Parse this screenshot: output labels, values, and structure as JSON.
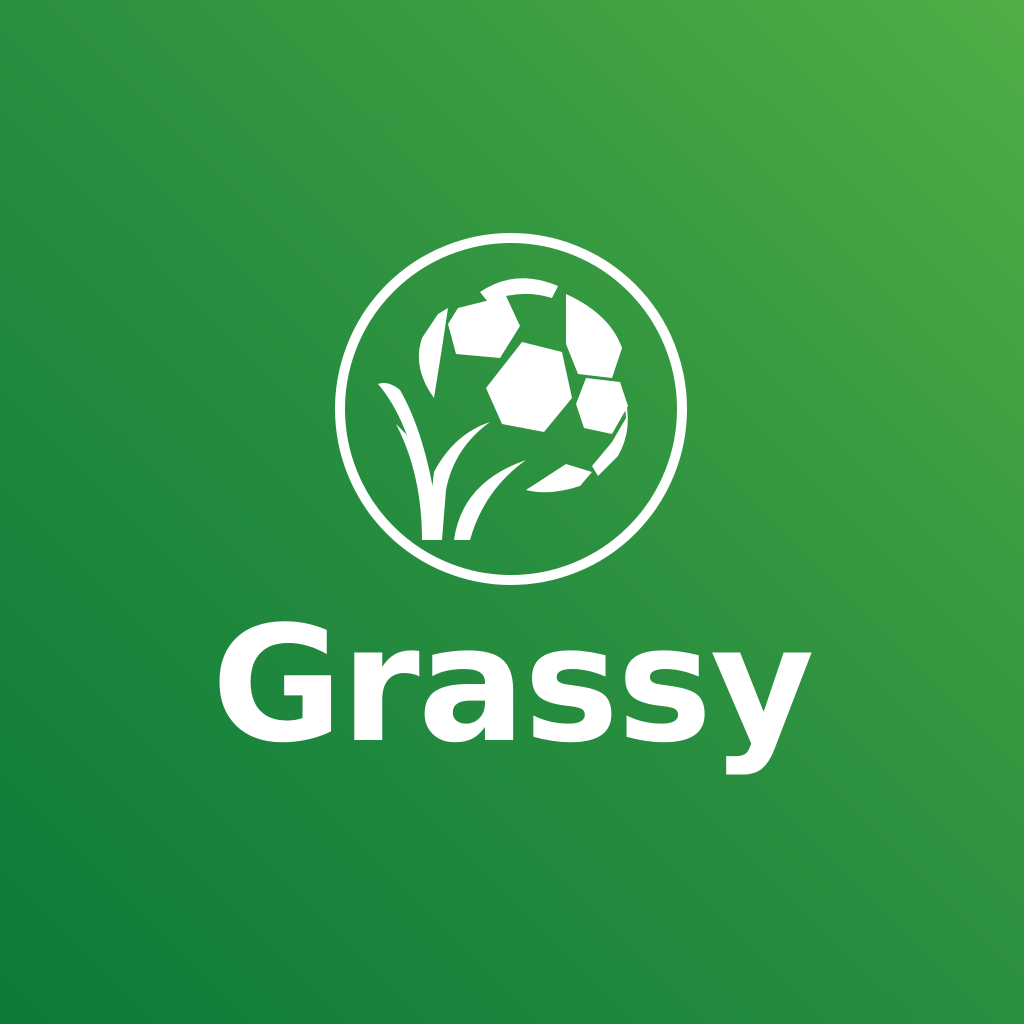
{
  "brand": {
    "name": "Grassy",
    "logo_icon": "soccer-ball-with-grass-icon"
  },
  "colors": {
    "background_dark": "#0d7a3a",
    "background_mid": "#2a8f3f",
    "background_light": "#4fae45",
    "foreground": "#ffffff"
  }
}
